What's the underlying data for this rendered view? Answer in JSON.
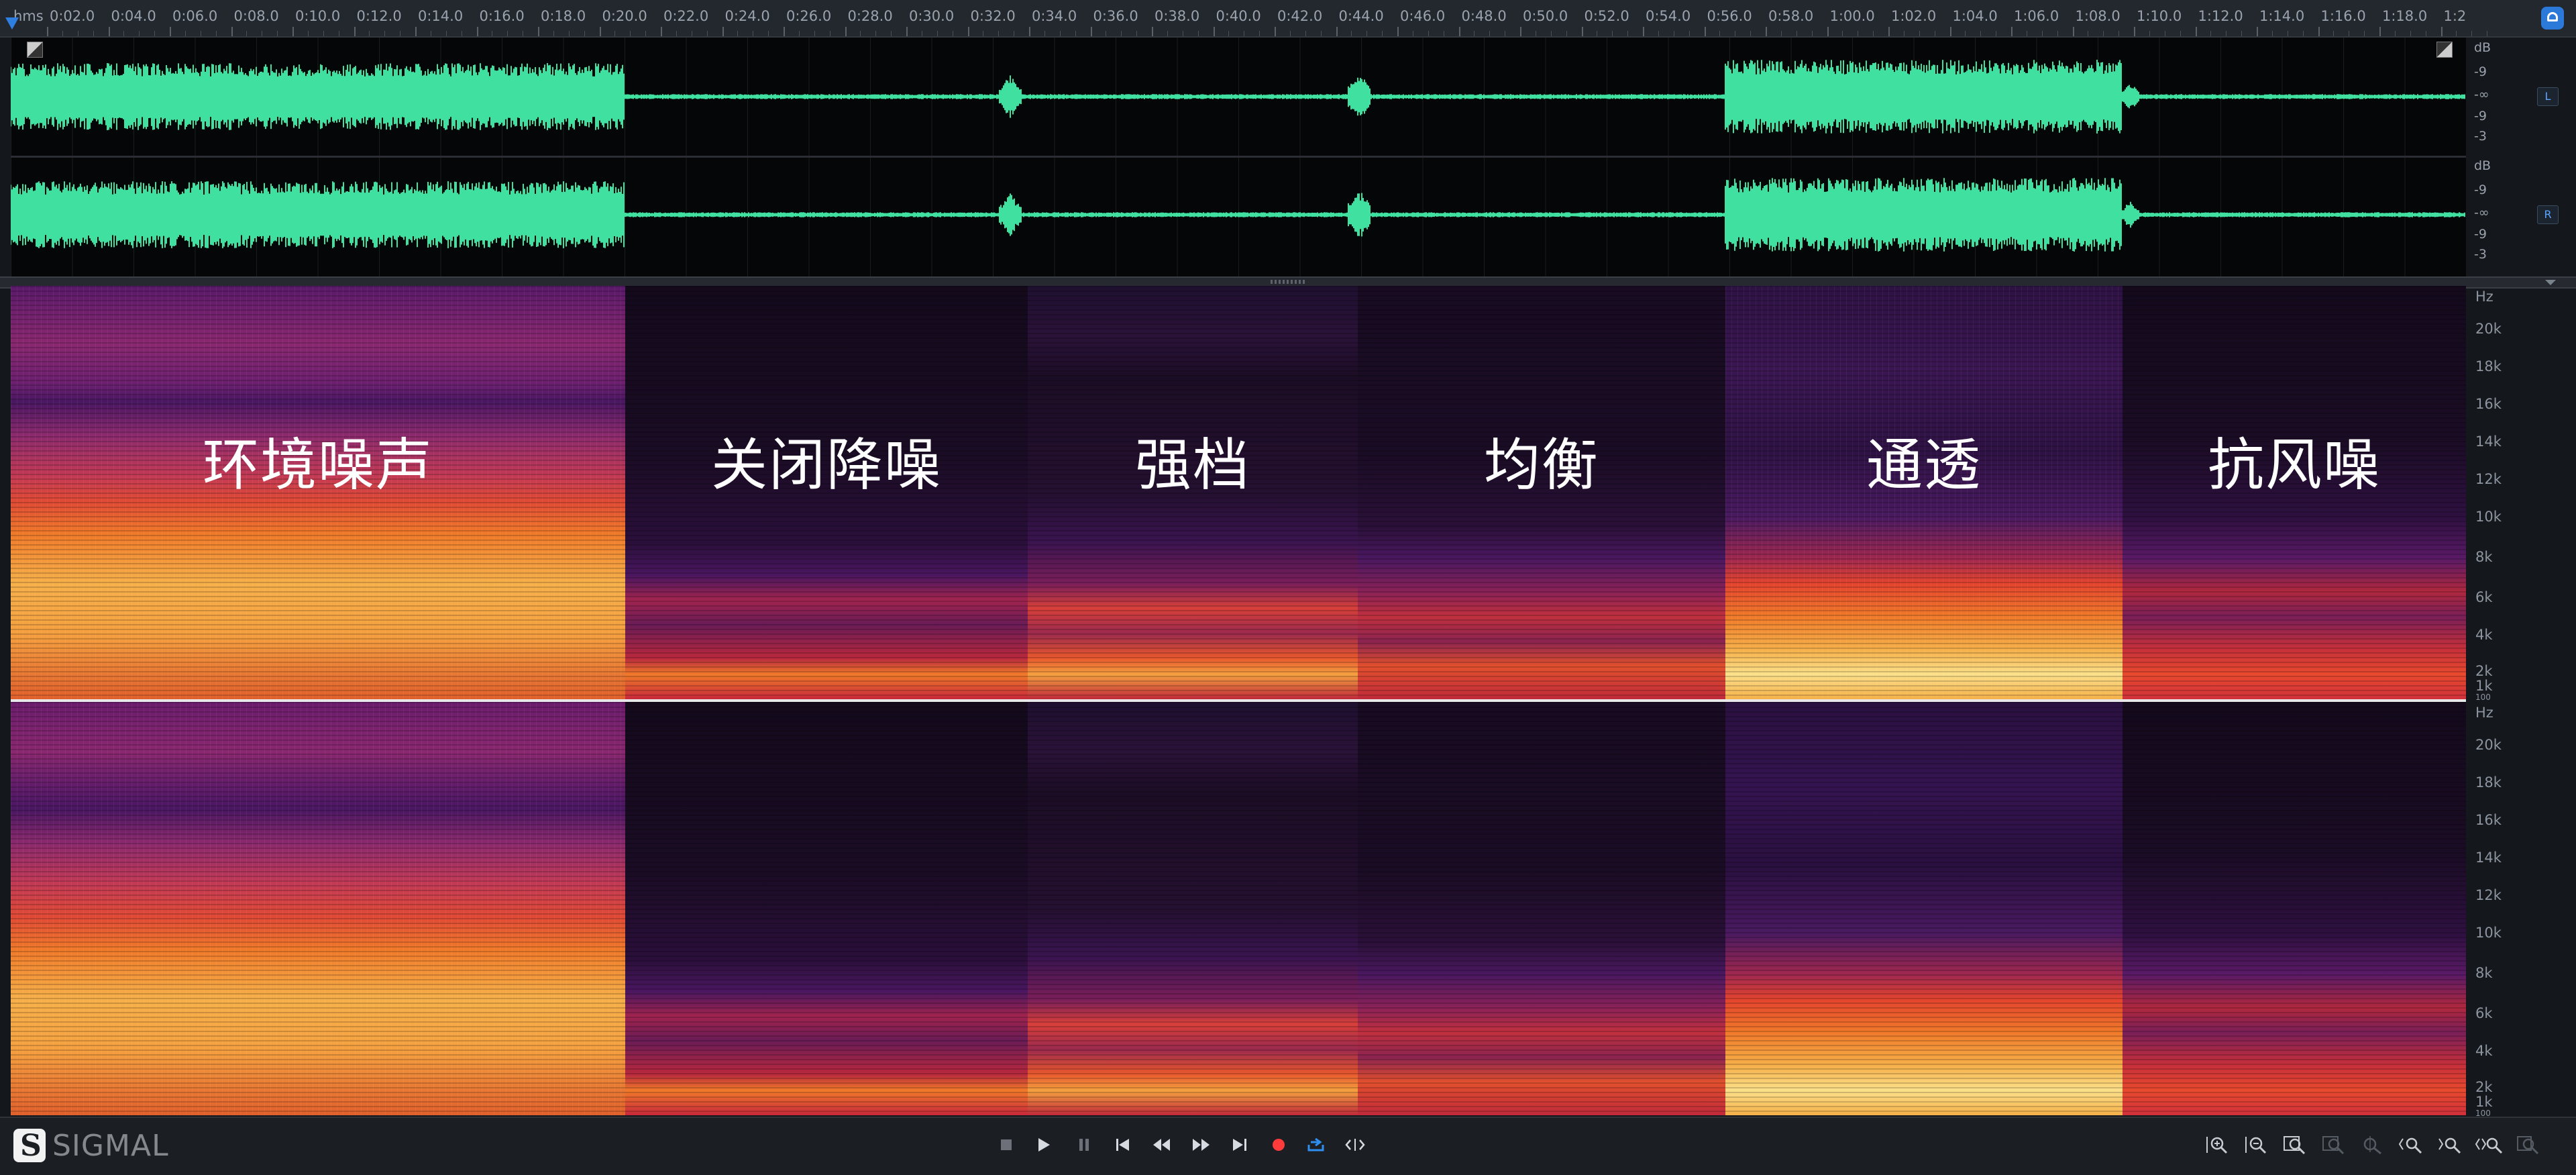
{
  "ruler": {
    "unit": "hms",
    "ticks": [
      "0:02.0",
      "0:04.0",
      "0:06.0",
      "0:08.0",
      "0:10.0",
      "0:12.0",
      "0:14.0",
      "0:16.0",
      "0:18.0",
      "0:20.0",
      "0:22.0",
      "0:24.0",
      "0:26.0",
      "0:28.0",
      "0:30.0",
      "0:32.0",
      "0:34.0",
      "0:36.0",
      "0:38.0",
      "0:40.0",
      "0:42.0",
      "0:44.0",
      "0:46.0",
      "0:48.0",
      "0:50.0",
      "0:52.0",
      "0:54.0",
      "0:56.0",
      "0:58.0",
      "1:00.0",
      "1:02.0",
      "1:04.0",
      "1:06.0",
      "1:08.0",
      "1:10.0",
      "1:12.0",
      "1:14.0",
      "1:16.0",
      "1:18.0",
      "1:2"
    ]
  },
  "waveform": {
    "channels": [
      {
        "badge": "L",
        "db_labels": [
          "dB",
          "-9",
          "-∞",
          "-9",
          "-3"
        ]
      },
      {
        "badge": "R",
        "db_labels": [
          "dB",
          "-9",
          "-∞",
          "-9",
          "-3"
        ]
      }
    ],
    "wave_color": "#3fe0a0"
  },
  "spectrogram": {
    "hz_labels_top": [
      "Hz",
      "20k",
      "18k",
      "16k",
      "14k",
      "12k",
      "10k",
      "8k",
      "6k",
      "4k",
      "2k",
      "1k",
      "100"
    ],
    "hz_labels_bottom": [
      "Hz",
      "20k",
      "18k",
      "16k",
      "14k",
      "12k",
      "10k",
      "8k",
      "6k",
      "4k",
      "2k",
      "1k",
      "100"
    ],
    "segments": [
      {
        "label": "环境噪声",
        "intensity": "high"
      },
      {
        "label": "关闭降噪",
        "intensity": "low"
      },
      {
        "label": "强档",
        "intensity": "medium"
      },
      {
        "label": "均衡",
        "intensity": "low-medium"
      },
      {
        "label": "通透",
        "intensity": "very-high"
      },
      {
        "label": "抗风噪",
        "intensity": "medium"
      }
    ]
  },
  "transport": {
    "logo_text": "SIGMAL",
    "buttons": [
      "stop-icon",
      "play-icon",
      "pause-icon",
      "skip-back-icon",
      "rewind-icon",
      "fast-forward-icon",
      "skip-forward-icon",
      "record-icon",
      "loop-icon",
      "skip-selection-icon"
    ],
    "zoom_buttons": [
      "zoom-in-vertical-icon",
      "zoom-out-vertical-icon",
      "zoom-fit-icon",
      "zoom-selection-icon",
      "zoom-cursor-icon",
      "zoom-in-horizontal-icon",
      "zoom-out-horizontal-icon",
      "zoom-full-icon",
      "zoom-reset-icon"
    ]
  },
  "colors": {
    "accent": "#2f7fe0",
    "record": "#ff3b3b"
  }
}
